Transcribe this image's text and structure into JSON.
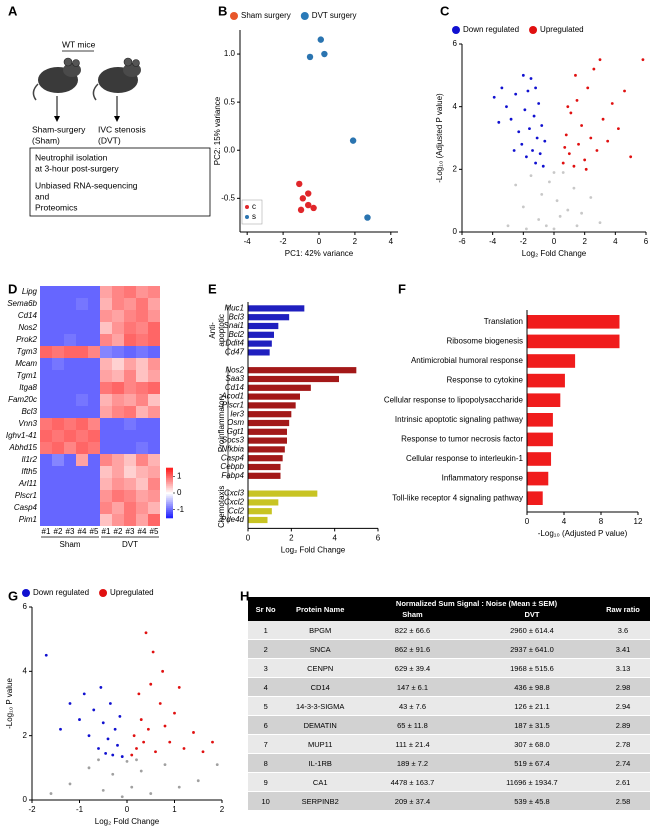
{
  "panel_labels": [
    "A",
    "B",
    "C",
    "D",
    "E",
    "F",
    "G",
    "H"
  ],
  "diagram": {
    "title": "WT mice",
    "groups": [
      {
        "lines": [
          "Sham-surgery",
          "(Sham)"
        ]
      },
      {
        "lines": [
          "IVC stenosis",
          "(DVT)"
        ]
      }
    ],
    "box": [
      [
        "Neutrophil isolation",
        "at 3-hour post-surgery"
      ],
      [
        "Unbiased RNA-sequencing",
        "and",
        "Proteomics"
      ]
    ]
  },
  "chart_data": [
    {
      "type": "scatter",
      "legend": "top",
      "x_label": "PC1: 42% variance",
      "y_label": "PC2: 15% variance",
      "xlim": [
        -4.4,
        4.4
      ],
      "ylim": [
        -0.85,
        1.25
      ],
      "xticks": [
        -4,
        -2,
        0,
        2,
        4
      ],
      "yticks": [
        -0.5,
        {
          "value": 0,
          "label": "0.0"
        },
        0.5,
        {
          "value": 1,
          "label": "1.0"
        }
      ],
      "series": [
        {
          "name": "Sham surgery",
          "color": "#e0262a",
          "x": [
            -1.1,
            -0.9,
            -0.6,
            -0.6,
            -1.0,
            -0.3
          ],
          "values": [
            -0.35,
            -0.5,
            -0.45,
            -0.57,
            -0.62,
            -0.6
          ]
        },
        {
          "name": "DVT surgery",
          "color": "#2a74b0",
          "x": [
            -0.5,
            0.1,
            0.3,
            1.9,
            2.7
          ],
          "values": [
            0.97,
            1.15,
            1.0,
            0.1,
            -0.7
          ]
        }
      ],
      "legend_colors": [
        "#e8572a",
        "#2a7ab8"
      ],
      "inset_legend": [
        {
          "name": "c",
          "color": "#e0262a"
        },
        {
          "name": "s",
          "color": "#2a74b0"
        }
      ]
    },
    {
      "type": "scatter",
      "legend": "top",
      "x_label": "Log₂ Fold Change",
      "y_label": "-Log₁₀ (Adjusted P value)",
      "xlim": [
        -6,
        6
      ],
      "ylim": [
        0,
        6
      ],
      "xticks": [
        -6,
        -4,
        -2,
        0,
        2,
        4,
        6
      ],
      "yticks": [
        0,
        2,
        4,
        6
      ],
      "series": [
        {
          "color": "#c8c8c8",
          "x": [
            -2.5,
            -2,
            -1.5,
            -1,
            -0.8,
            -0.5,
            -0.3,
            0,
            0.2,
            0.4,
            0.6,
            0.9,
            1.3,
            1.8,
            2.4,
            3,
            -3,
            -1.8,
            1.5,
            0
          ],
          "values": [
            1.5,
            0.8,
            1.8,
            0.4,
            1.2,
            0.2,
            1.6,
            0.1,
            1.0,
            0.5,
            1.9,
            0.7,
            1.4,
            0.6,
            1.1,
            0.3,
            0.2,
            0.1,
            0.2,
            1.9
          ]
        },
        {
          "name": "Down regulated",
          "color": "#1010d0",
          "x": [
            -3.9,
            -3.4,
            -3.1,
            -2.8,
            -2.5,
            -2.3,
            -2.1,
            -1.9,
            -1.8,
            -1.6,
            -1.5,
            -1.4,
            -1.3,
            -1.2,
            -1.1,
            -1.0,
            -0.9,
            -0.8,
            -0.7,
            -0.6,
            -2.0,
            -1.7,
            -2.6,
            -3.6,
            -1.2
          ],
          "values": [
            4.3,
            4.6,
            4.0,
            3.6,
            4.4,
            3.2,
            2.8,
            3.9,
            2.4,
            3.3,
            4.9,
            2.6,
            3.7,
            2.2,
            3.0,
            4.1,
            2.5,
            3.4,
            2.1,
            2.9,
            5.0,
            4.5,
            2.6,
            3.5,
            4.6
          ]
        },
        {
          "name": "Upregulated",
          "color": "#e01010",
          "x": [
            0.6,
            0.8,
            1.0,
            1.1,
            1.3,
            1.5,
            1.6,
            1.8,
            2.0,
            2.2,
            2.4,
            2.6,
            2.8,
            3.0,
            3.2,
            3.5,
            3.8,
            4.2,
            4.6,
            5.0,
            5.8,
            0.9,
            1.4,
            2.1,
            0.7
          ],
          "values": [
            2.2,
            3.1,
            2.5,
            3.8,
            2.1,
            4.2,
            2.8,
            3.4,
            2.3,
            4.6,
            3.0,
            5.2,
            2.6,
            5.5,
            3.6,
            2.9,
            4.1,
            3.3,
            4.5,
            2.4,
            5.5,
            4.0,
            5.0,
            2.0,
            2.7
          ]
        }
      ]
    },
    {
      "type": "heatmap",
      "rows": [
        "Lipg",
        "Sema6b",
        "Cd14",
        "Nos2",
        "Prok2",
        "Tgm3",
        "Mcam",
        "Tgm1",
        "Itga8",
        "Fam20c",
        "Bcl3",
        "Vnn3",
        "Ighv1-41",
        "Abhd15",
        "Il1r2",
        "Ifth5",
        "Arl11",
        "Plscr1",
        "Casp4",
        "Pim1"
      ],
      "groups": [
        {
          "name": "Sham",
          "columns": [
            "#1",
            "#2",
            "#3",
            "#4",
            "#5"
          ]
        },
        {
          "name": "DVT",
          "columns": [
            "#1",
            "#2",
            "#3",
            "#4",
            "#5"
          ]
        }
      ],
      "zlim": [
        -1.5,
        1.5
      ],
      "zticks": [
        -1,
        0,
        1
      ],
      "colors": [
        "#1a1aff",
        "#ffffff",
        "#ff1a1a"
      ],
      "values": [
        [
          -1,
          -1,
          -1,
          -1,
          -1,
          0.6,
          0.8,
          0.9,
          0.7,
          0.8
        ],
        [
          -1,
          -1,
          -1,
          -0.9,
          -1,
          0.5,
          0.8,
          0.7,
          0.9,
          0.6
        ],
        [
          -1,
          -1,
          -1,
          -1,
          -1,
          0.7,
          0.6,
          0.8,
          0.9,
          0.7
        ],
        [
          -1,
          -1,
          -1,
          -1,
          -1,
          0.4,
          0.7,
          0.9,
          0.8,
          1
        ],
        [
          -1,
          -1,
          -0.9,
          -1,
          -1,
          0.8,
          0.6,
          1,
          0.9,
          1
        ],
        [
          1,
          0.9,
          1,
          1,
          0.8,
          -0.8,
          -0.9,
          -1,
          -0.9,
          -1
        ],
        [
          -1,
          -0.9,
          -1,
          -1,
          -1,
          0.5,
          0.3,
          0.6,
          0.4,
          0.7
        ],
        [
          -1,
          -1,
          -1,
          -1,
          -1,
          0.6,
          0.5,
          0.8,
          0.4,
          0.6
        ],
        [
          -1,
          -1,
          -1,
          -1,
          -1,
          0.9,
          1,
          0.8,
          0.9,
          1
        ],
        [
          -1,
          -1,
          -1,
          -0.9,
          -1,
          0.5,
          0.7,
          0.6,
          0.8,
          0.4
        ],
        [
          -1,
          -1,
          -1,
          -1,
          -1,
          0.6,
          0.8,
          0.9,
          0.5,
          0.7
        ],
        [
          0.9,
          1,
          0.9,
          1,
          0.8,
          -1,
          -1,
          -0.9,
          -1,
          -1
        ],
        [
          1,
          0.9,
          1,
          0.9,
          1,
          -1,
          -1,
          -1,
          -1,
          -1
        ],
        [
          0.9,
          1,
          0.8,
          1,
          0.9,
          -1,
          -1,
          -1,
          -0.9,
          -1
        ],
        [
          -1,
          -0.8,
          -1,
          0.6,
          -1,
          0.8,
          0.6,
          0.4,
          0.8,
          0.5
        ],
        [
          -1,
          -1,
          -1,
          -1,
          -1,
          0.4,
          0.6,
          0.3,
          0.5,
          0.6
        ],
        [
          -1,
          -1,
          -1,
          -1,
          -1,
          0.5,
          0.7,
          0.6,
          0.4,
          0.8
        ],
        [
          -1,
          -1,
          -1,
          -1,
          -1,
          0.7,
          0.9,
          0.8,
          0.6,
          0.7
        ],
        [
          -1,
          -1,
          -1,
          -1,
          -1,
          0.8,
          0.6,
          0.9,
          0.7,
          0.5
        ],
        [
          -1,
          -1,
          -1,
          -1,
          -1,
          0.4,
          0.7,
          0.9,
          0.6,
          1
        ]
      ]
    },
    {
      "type": "hbar",
      "x_label": "Log₂ Fold Change",
      "xlim": [
        0,
        6
      ],
      "xticks": [
        0,
        2,
        4,
        6
      ],
      "groups": [
        {
          "label_lines": [
            "Anti-",
            "apoptotic"
          ],
          "color": "#1f1fbf",
          "categories": [
            "Muc1",
            "Bcl3",
            "Snai1",
            "Bcl2",
            "Ddit4",
            "Cd47"
          ],
          "values": [
            2.6,
            1.9,
            1.4,
            1.2,
            1.1,
            1.0
          ]
        },
        {
          "label_lines": [
            "Proinflammatory"
          ],
          "color": "#a31818",
          "categories": [
            "Nos2",
            "Saa3",
            "Cd14",
            "Acod1",
            "Plscr1",
            "Ier3",
            "Osm",
            "Ggt1",
            "Socs3",
            "Nfkbia",
            "Casp4",
            "Cebpb",
            "Fabp4"
          ],
          "values": [
            5.0,
            4.2,
            2.9,
            2.4,
            2.2,
            2.0,
            1.9,
            1.8,
            1.8,
            1.7,
            1.6,
            1.5,
            1.5
          ]
        },
        {
          "label_lines": [
            "Chemotaxis"
          ],
          "color": "#c8c423",
          "categories": [
            "Cxcl3",
            "Cxcl2",
            "Ccl2",
            "Pde4d"
          ],
          "values": [
            3.2,
            1.4,
            1.1,
            0.9
          ]
        }
      ]
    },
    {
      "type": "hbar",
      "x_label": "-Log₁₀ (Adjusted P value)",
      "xlim": [
        0,
        12
      ],
      "xticks": [
        0,
        4,
        8,
        12
      ],
      "groups": [
        {
          "color": "#f01c1c",
          "categories": [
            "Translation",
            "Ribosome biogenesis",
            "Antimicrobial humoral response",
            "Response to cytokine",
            "Cellular response to lipopolysaccharide",
            "Intrinsic apoptotic signaling pathway",
            "Response to tumor necrosis factor",
            "Cellular response to interleukin-1",
            "Inflammatory response",
            "Toll-like receptor 4 signaling pathway"
          ],
          "values": [
            10,
            10,
            5.2,
            4.1,
            3.6,
            2.8,
            2.8,
            2.6,
            2.3,
            1.7
          ]
        }
      ]
    },
    {
      "type": "scatter",
      "legend": "top",
      "x_label": "Log₂ Fold Change",
      "y_label": "-Log₁₀ P value",
      "xlim": [
        -2,
        2
      ],
      "ylim": [
        0,
        6
      ],
      "xticks": [
        -2,
        -1,
        0,
        1,
        2
      ],
      "yticks": [
        0,
        2,
        4,
        6
      ],
      "series": [
        {
          "color": "#a0a0a0",
          "x": [
            -1.2,
            -0.8,
            -0.5,
            -0.3,
            -0.1,
            0,
            0.1,
            0.3,
            0.5,
            0.8,
            1.1,
            1.5,
            1.9,
            -1.6,
            0.2,
            -0.6
          ],
          "values": [
            0.5,
            1.0,
            0.3,
            0.8,
            0.1,
            1.2,
            0.4,
            0.9,
            0.2,
            1.1,
            0.4,
            0.6,
            1.1,
            0.2,
            1.25,
            1.25
          ]
        },
        {
          "name": "Down regulated",
          "color": "#1010d0",
          "x": [
            -1.7,
            -1.2,
            -1.0,
            -0.9,
            -0.8,
            -0.7,
            -0.6,
            -0.5,
            -0.4,
            -0.35,
            -0.3,
            -0.25,
            -0.2,
            -0.15,
            -0.1,
            -1.4,
            -0.55,
            -0.45
          ],
          "values": [
            4.5,
            3.0,
            2.5,
            3.3,
            2.0,
            2.8,
            1.6,
            2.4,
            1.9,
            3.0,
            1.4,
            2.2,
            1.7,
            2.6,
            1.35,
            2.2,
            3.5,
            1.45
          ]
        },
        {
          "name": "Upregulated",
          "color": "#e01010",
          "x": [
            0.1,
            0.15,
            0.2,
            0.3,
            0.35,
            0.4,
            0.45,
            0.5,
            0.6,
            0.7,
            0.75,
            0.8,
            0.9,
            1.0,
            1.1,
            1.2,
            1.4,
            1.6,
            1.8,
            0.25,
            0.55
          ],
          "values": [
            1.4,
            2.0,
            1.6,
            2.5,
            1.8,
            5.2,
            2.2,
            3.6,
            1.5,
            3.0,
            4.0,
            2.3,
            1.8,
            2.7,
            3.5,
            1.6,
            2.1,
            1.5,
            1.8,
            3.3,
            4.6
          ]
        }
      ]
    }
  ],
  "table": {
    "headers": {
      "sr": "Sr No",
      "protein": "Protein Name",
      "signal": "Normalized Sum Signal : Noise (Mean ± SEM)",
      "sham": "Sham",
      "dvt": "DVT",
      "ratio": "Raw ratio"
    },
    "rows": [
      [
        "1",
        "BPGM",
        "822 ± 66.6",
        "2960 ± 614.4",
        "3.6"
      ],
      [
        "2",
        "SNCA",
        "862 ± 91.6",
        "2937 ± 641.0",
        "3.41"
      ],
      [
        "3",
        "CENPN",
        "629 ± 39.4",
        "1968 ± 515.6",
        "3.13"
      ],
      [
        "4",
        "CD14",
        "147 ± 6.1",
        "436 ± 98.8",
        "2.98"
      ],
      [
        "5",
        "14-3-3-SIGMA",
        "43 ± 7.6",
        "126 ± 21.1",
        "2.94"
      ],
      [
        "6",
        "DEMATIN",
        "65 ± 11.8",
        "187 ± 31.5",
        "2.89"
      ],
      [
        "7",
        "MUP11",
        "111 ± 21.4",
        "307 ± 68.0",
        "2.78"
      ],
      [
        "8",
        "IL-1RB",
        "189 ± 7.2",
        "519 ± 67.4",
        "2.74"
      ],
      [
        "9",
        "CA1",
        "4478 ± 163.7",
        "11696 ± 1934.7",
        "2.61"
      ],
      [
        "10",
        "SERPINB2",
        "209 ± 37.4",
        "539 ± 45.8",
        "2.58"
      ]
    ]
  }
}
